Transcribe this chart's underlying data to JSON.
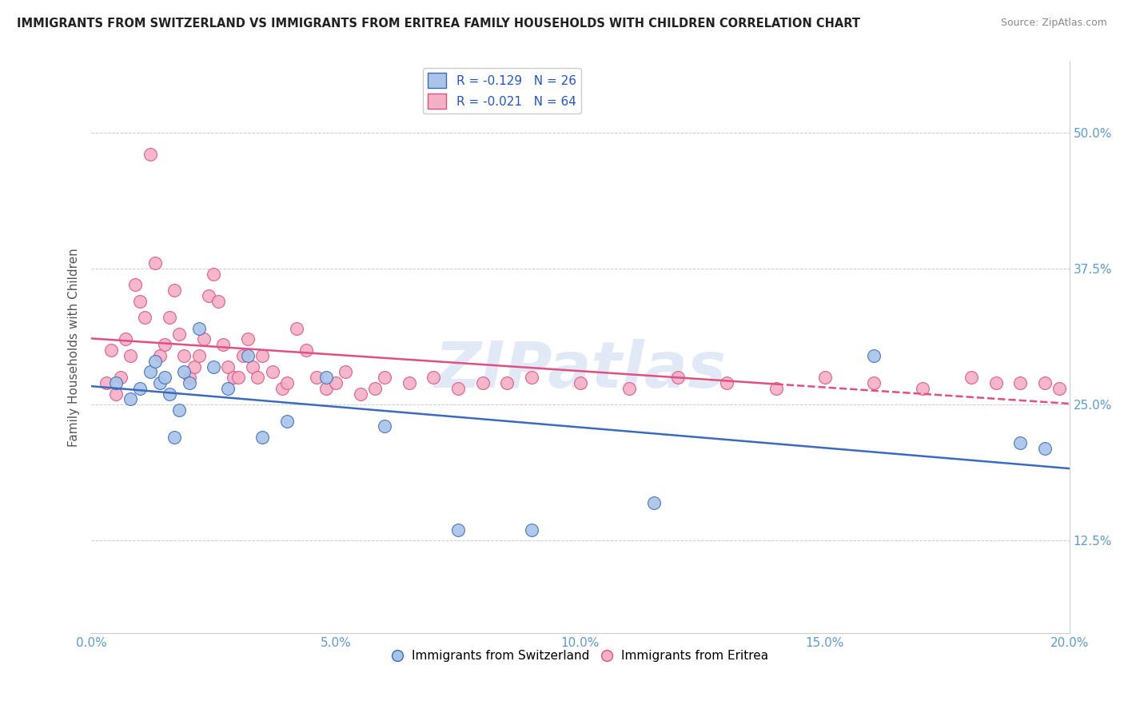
{
  "title": "IMMIGRANTS FROM SWITZERLAND VS IMMIGRANTS FROM ERITREA FAMILY HOUSEHOLDS WITH CHILDREN CORRELATION CHART",
  "source": "Source: ZipAtlas.com",
  "ylabel": "Family Households with Children",
  "y_ticks": [
    0.125,
    0.25,
    0.375,
    0.5
  ],
  "y_tick_labels": [
    "12.5%",
    "25.0%",
    "37.5%",
    "50.0%"
  ],
  "x_ticks": [
    0.0,
    0.05,
    0.1,
    0.15,
    0.2
  ],
  "x_tick_labels": [
    "0.0%",
    "5.0%",
    "10.0%",
    "15.0%",
    "20.0%"
  ],
  "xlim": [
    0.0,
    0.2
  ],
  "ylim": [
    0.04,
    0.565
  ],
  "legend_blue_r": "R = -0.129",
  "legend_blue_n": "N = 26",
  "legend_pink_r": "R = -0.021",
  "legend_pink_n": "N = 64",
  "blue_color": "#a8c4e8",
  "pink_color": "#f5b0c5",
  "blue_line_color": "#3a6bbf",
  "pink_line_color": "#e05080",
  "watermark": "ZIPatlas",
  "swiss_points_x": [
    0.005,
    0.008,
    0.01,
    0.012,
    0.013,
    0.014,
    0.015,
    0.016,
    0.017,
    0.018,
    0.019,
    0.02,
    0.022,
    0.025,
    0.028,
    0.032,
    0.035,
    0.04,
    0.048,
    0.06,
    0.075,
    0.09,
    0.115,
    0.16,
    0.19,
    0.195
  ],
  "swiss_points_y": [
    0.27,
    0.255,
    0.265,
    0.28,
    0.29,
    0.27,
    0.275,
    0.26,
    0.22,
    0.245,
    0.28,
    0.27,
    0.32,
    0.285,
    0.265,
    0.295,
    0.22,
    0.235,
    0.275,
    0.23,
    0.135,
    0.135,
    0.16,
    0.295,
    0.215,
    0.21
  ],
  "eritrea_points_x": [
    0.003,
    0.004,
    0.005,
    0.006,
    0.007,
    0.008,
    0.009,
    0.01,
    0.011,
    0.012,
    0.013,
    0.014,
    0.015,
    0.016,
    0.017,
    0.018,
    0.019,
    0.02,
    0.021,
    0.022,
    0.023,
    0.024,
    0.025,
    0.026,
    0.027,
    0.028,
    0.029,
    0.03,
    0.031,
    0.032,
    0.033,
    0.034,
    0.035,
    0.037,
    0.039,
    0.04,
    0.042,
    0.044,
    0.046,
    0.048,
    0.05,
    0.052,
    0.055,
    0.058,
    0.06,
    0.065,
    0.07,
    0.075,
    0.08,
    0.085,
    0.09,
    0.1,
    0.11,
    0.12,
    0.13,
    0.14,
    0.15,
    0.16,
    0.17,
    0.18,
    0.185,
    0.19,
    0.195,
    0.198
  ],
  "eritrea_points_y": [
    0.27,
    0.3,
    0.26,
    0.275,
    0.31,
    0.295,
    0.36,
    0.345,
    0.33,
    0.48,
    0.38,
    0.295,
    0.305,
    0.33,
    0.355,
    0.315,
    0.295,
    0.275,
    0.285,
    0.295,
    0.31,
    0.35,
    0.37,
    0.345,
    0.305,
    0.285,
    0.275,
    0.275,
    0.295,
    0.31,
    0.285,
    0.275,
    0.295,
    0.28,
    0.265,
    0.27,
    0.32,
    0.3,
    0.275,
    0.265,
    0.27,
    0.28,
    0.26,
    0.265,
    0.275,
    0.27,
    0.275,
    0.265,
    0.27,
    0.27,
    0.275,
    0.27,
    0.265,
    0.275,
    0.27,
    0.265,
    0.275,
    0.27,
    0.265,
    0.275,
    0.27,
    0.27,
    0.27,
    0.265
  ]
}
